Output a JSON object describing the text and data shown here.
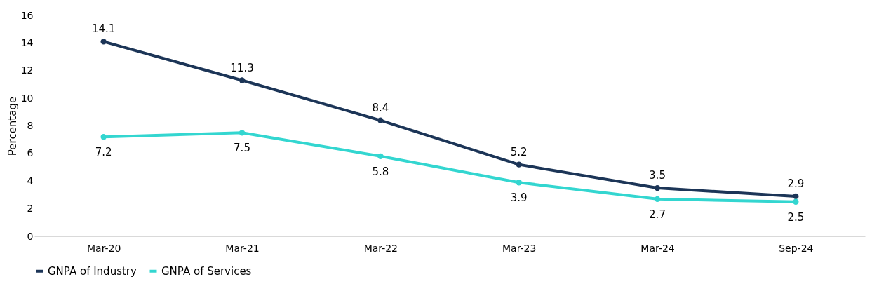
{
  "chart_data": {
    "type": "line",
    "ylabel": "Percentage",
    "categories": [
      "Mar-20",
      "Mar-21",
      "Mar-22",
      "Mar-23",
      "Mar-24",
      "Sep-24"
    ],
    "series": [
      {
        "name": "GNPA of Industry",
        "color": "#1c3557",
        "values": [
          14.1,
          11.3,
          8.4,
          5.2,
          3.5,
          2.9
        ]
      },
      {
        "name": "GNPA of Services",
        "color": "#33d6d0",
        "values": [
          7.2,
          7.5,
          5.8,
          3.9,
          2.7,
          2.5
        ]
      }
    ],
    "ylim": [
      0,
      16
    ],
    "yticks": [
      0,
      2,
      4,
      6,
      8,
      10,
      12,
      14,
      16
    ],
    "grid": false,
    "legend": "bottom",
    "marker": "circle",
    "line_style": "solid",
    "data_labels": true
  }
}
